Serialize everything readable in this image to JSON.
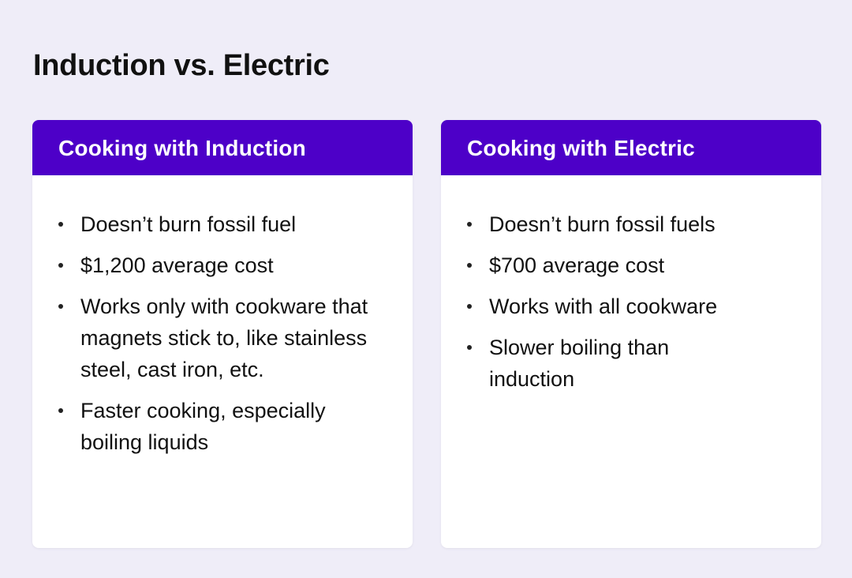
{
  "title": "Induction vs. Electric",
  "colors": {
    "header": "#4d00c8",
    "background": "#efedf8"
  },
  "cards": [
    {
      "heading": "Cooking with Induction",
      "items": [
        "Doesn’t burn fossil fuel",
        "$1,200 average cost",
        "Works only with cookware that magnets stick to, like stainless steel, cast iron, etc.",
        "Faster cooking, especially boiling liquids"
      ]
    },
    {
      "heading": "Cooking with Electric",
      "items": [
        "Doesn’t burn fossil fuels",
        "$700 average cost",
        "Works with all cookware",
        "Slower boiling than induction"
      ]
    }
  ]
}
